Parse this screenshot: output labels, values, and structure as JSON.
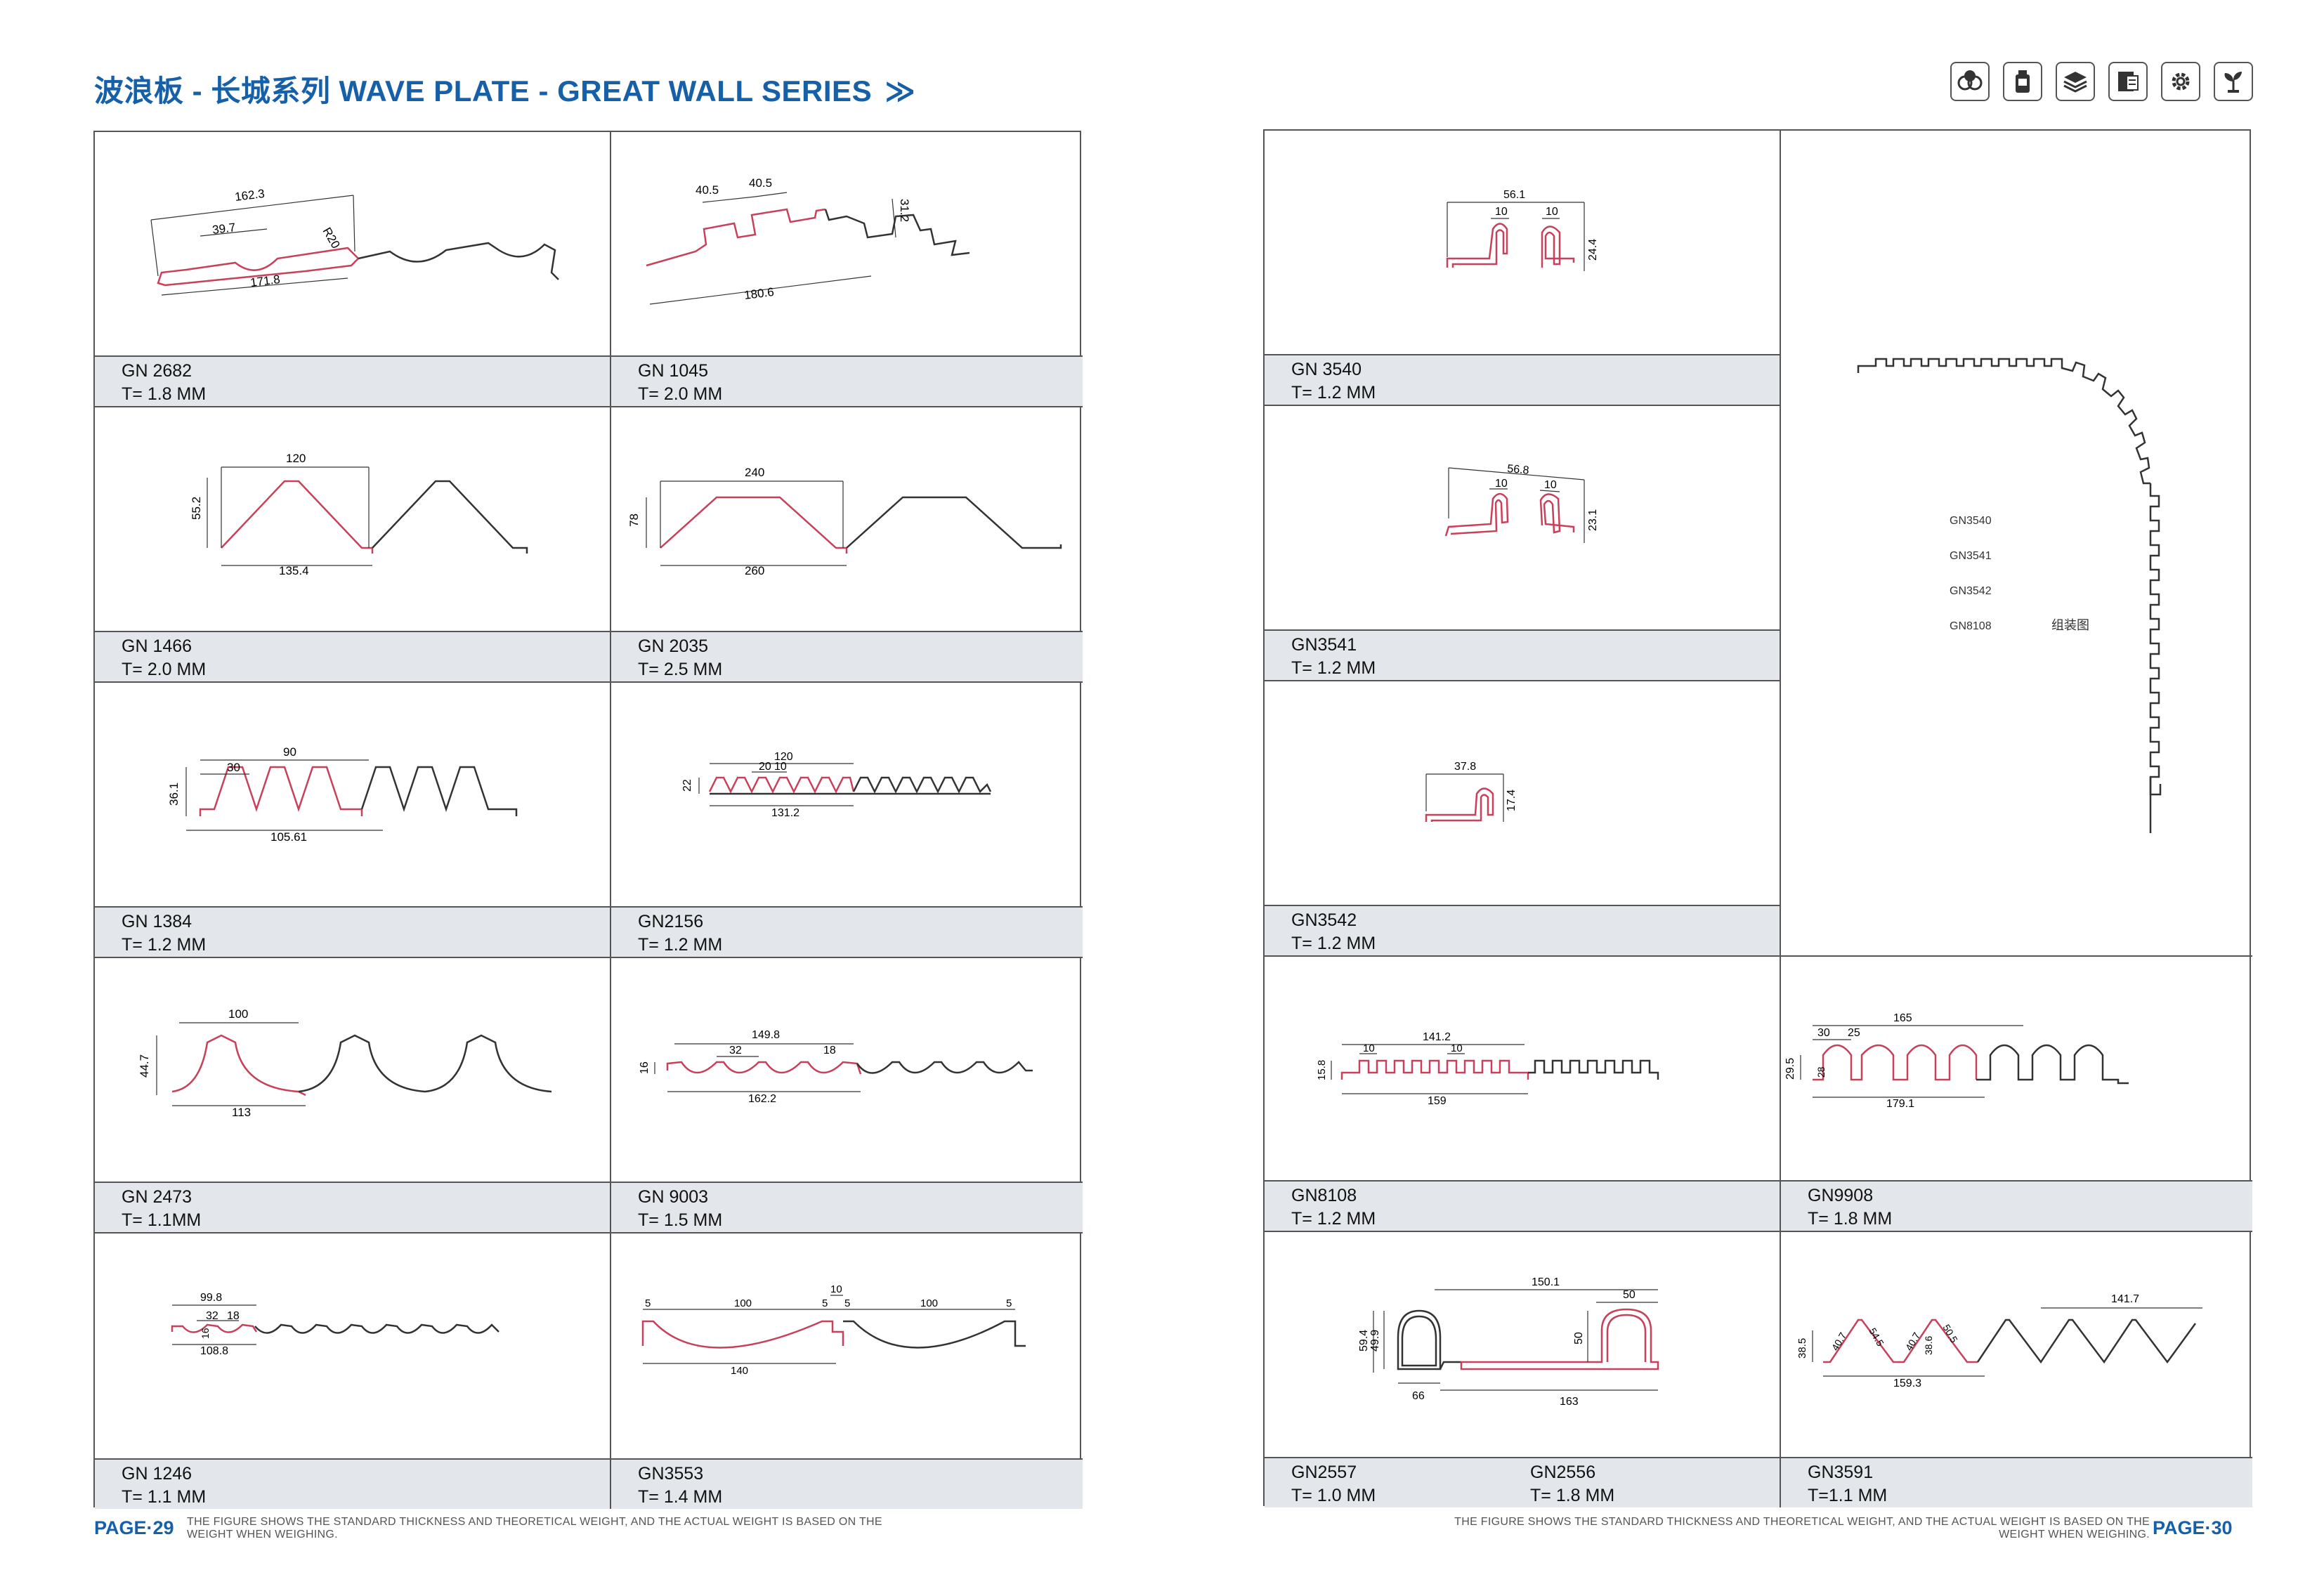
{
  "header": {
    "title": "波浪板 - 长城系列 WAVE PLATE - GREAT WALL SERIES",
    "arrows": "≫"
  },
  "icons": [
    "cans-icon",
    "bottle-icon",
    "stack-icon",
    "book-icon",
    "gear-icon",
    "plant-icon"
  ],
  "colors": {
    "accent": "#1560a8",
    "profile_highlight": "#c8405a",
    "profile_line": "#333333",
    "label_bg": "#e3e7ec"
  },
  "left_page": {
    "products": [
      {
        "code": "GN 2682",
        "thickness": "T=  1.8 MM"
      },
      {
        "code": "GN 1045",
        "thickness": "T= 2.0 MM"
      },
      {
        "code": "GN  1466",
        "thickness": "T=  2.0  MM"
      },
      {
        "code": "GN  2035",
        "thickness": "T=  2.5    MM"
      },
      {
        "code": "GN 1384",
        "thickness": "T=  1.2    MM"
      },
      {
        "code": "GN2156",
        "thickness": "T= 1.2 MM"
      },
      {
        "code": "GN 2473",
        "thickness": "T=  1.1MM"
      },
      {
        "code": "GN 9003",
        "thickness": "T=  1.5 MM"
      },
      {
        "code": "GN 1246",
        "thickness": "T= 1.1 MM"
      },
      {
        "code": "GN3553",
        "thickness": "T= 1.4 MM"
      }
    ],
    "dims": {
      "gn2682": [
        "162.3",
        "39.7",
        "R20",
        "171.8"
      ],
      "gn1045": [
        "40.5",
        "40.5",
        "31.2",
        "180.6"
      ],
      "gn1466": [
        "120",
        "55.2",
        "135.4"
      ],
      "gn2035": [
        "240",
        "78",
        "260"
      ],
      "gn1384": [
        "30",
        "90",
        "36.1",
        "105.61"
      ],
      "gn2156": [
        "120",
        "20",
        "10",
        "22",
        "131.2"
      ],
      "gn2473": [
        "100",
        "44.7",
        "113"
      ],
      "gn9003": [
        "149.8",
        "32",
        "18",
        "16",
        "162.2"
      ],
      "gn1246": [
        "99.8",
        "32",
        "18",
        "16",
        "108.8"
      ],
      "gn3553": [
        "10",
        "5",
        "100",
        "5",
        "5",
        "100",
        "5",
        "140"
      ]
    },
    "footer": "THE FIGURE SHOWS THE STANDARD THICKNESS AND THEORETICAL WEIGHT, AND THE ACTUAL WEIGHT IS BASED ON THE WEIGHT WHEN WEIGHING.",
    "page": "PAGE·29"
  },
  "right_page": {
    "products": [
      {
        "code": "GN 3540",
        "thickness": "T= 1.2 MM"
      },
      {
        "code": "GN3541",
        "thickness": "T= 1.2 MM"
      },
      {
        "code": "GN3542",
        "thickness": "T= 1.2 MM"
      },
      {
        "code": "GN8108",
        "thickness": "T=  1.2 MM"
      },
      {
        "code": "GN9908",
        "thickness": "T= 1.8 MM"
      },
      {
        "code": "GN2557",
        "thickness": "T= 1.0 MM",
        "code2": "GN2556",
        "thickness2": "T= 1.8 MM"
      },
      {
        "code": "GN3591",
        "thickness": "T=1.1 MM"
      }
    ],
    "dims": {
      "gn3540": [
        "56.1",
        "10",
        "10",
        "24.4"
      ],
      "gn3541": [
        "56.8",
        "10",
        "10",
        "23.1"
      ],
      "gn3542": [
        "37.8",
        "17.4"
      ],
      "gn8108": [
        "141.2",
        "10",
        "10",
        "15.8",
        "159"
      ],
      "gn9908": [
        "165",
        "30",
        "25",
        "29.5",
        "28",
        "179.1"
      ],
      "gn2557": [
        "150.1",
        "50",
        "59.4",
        "49.9",
        "50",
        "66",
        "163"
      ],
      "gn3591": [
        "141.7",
        "38.5",
        "40.7",
        "54.5",
        "40.7",
        "38.6",
        "50.5",
        "159.3"
      ]
    },
    "assembly": {
      "labels": [
        "GN3540",
        "GN3541",
        "GN3542",
        "GN8108"
      ],
      "caption": "组装图"
    },
    "footer": "THE FIGURE SHOWS THE STANDARD THICKNESS AND THEORETICAL WEIGHT, AND THE ACTUAL WEIGHT IS BASED ON THE WEIGHT WHEN WEIGHING.",
    "page": "PAGE·30"
  }
}
